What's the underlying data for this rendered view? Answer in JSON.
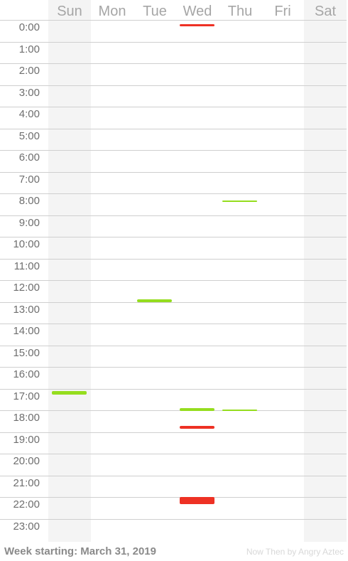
{
  "days": [
    "Sun",
    "Mon",
    "Tue",
    "Wed",
    "Thu",
    "Fri",
    "Sat"
  ],
  "hours": [
    "0:00",
    "1:00",
    "2:00",
    "3:00",
    "4:00",
    "5:00",
    "6:00",
    "7:00",
    "8:00",
    "9:00",
    "10:00",
    "11:00",
    "12:00",
    "13:00",
    "14:00",
    "15:00",
    "16:00",
    "17:00",
    "18:00",
    "19:00",
    "20:00",
    "21:00",
    "22:00",
    "23:00"
  ],
  "colors": {
    "green": "#95dd1e",
    "red": "#ee3124",
    "weekend": "#f4f4f4",
    "grid": "#cfcfcf"
  },
  "events": [
    {
      "day": "Wed",
      "start": 0.12,
      "end": 0.22,
      "color": "red"
    },
    {
      "day": "Thu",
      "start": 8.25,
      "end": 8.3,
      "color": "green"
    },
    {
      "day": "Tue",
      "start": 12.82,
      "end": 12.95,
      "color": "green"
    },
    {
      "day": "Sun",
      "start": 17.05,
      "end": 17.22,
      "color": "green"
    },
    {
      "day": "Wed",
      "start": 17.85,
      "end": 17.98,
      "color": "green"
    },
    {
      "day": "Thu",
      "start": 17.9,
      "end": 17.96,
      "color": "green"
    },
    {
      "day": "Wed",
      "start": 18.65,
      "end": 18.8,
      "color": "red"
    },
    {
      "day": "Wed",
      "start": 21.95,
      "end": 22.25,
      "color": "red"
    }
  ],
  "footer": {
    "week_label": "Week starting: March 31, 2019",
    "credit": "Now Then by Angry Aztec"
  }
}
